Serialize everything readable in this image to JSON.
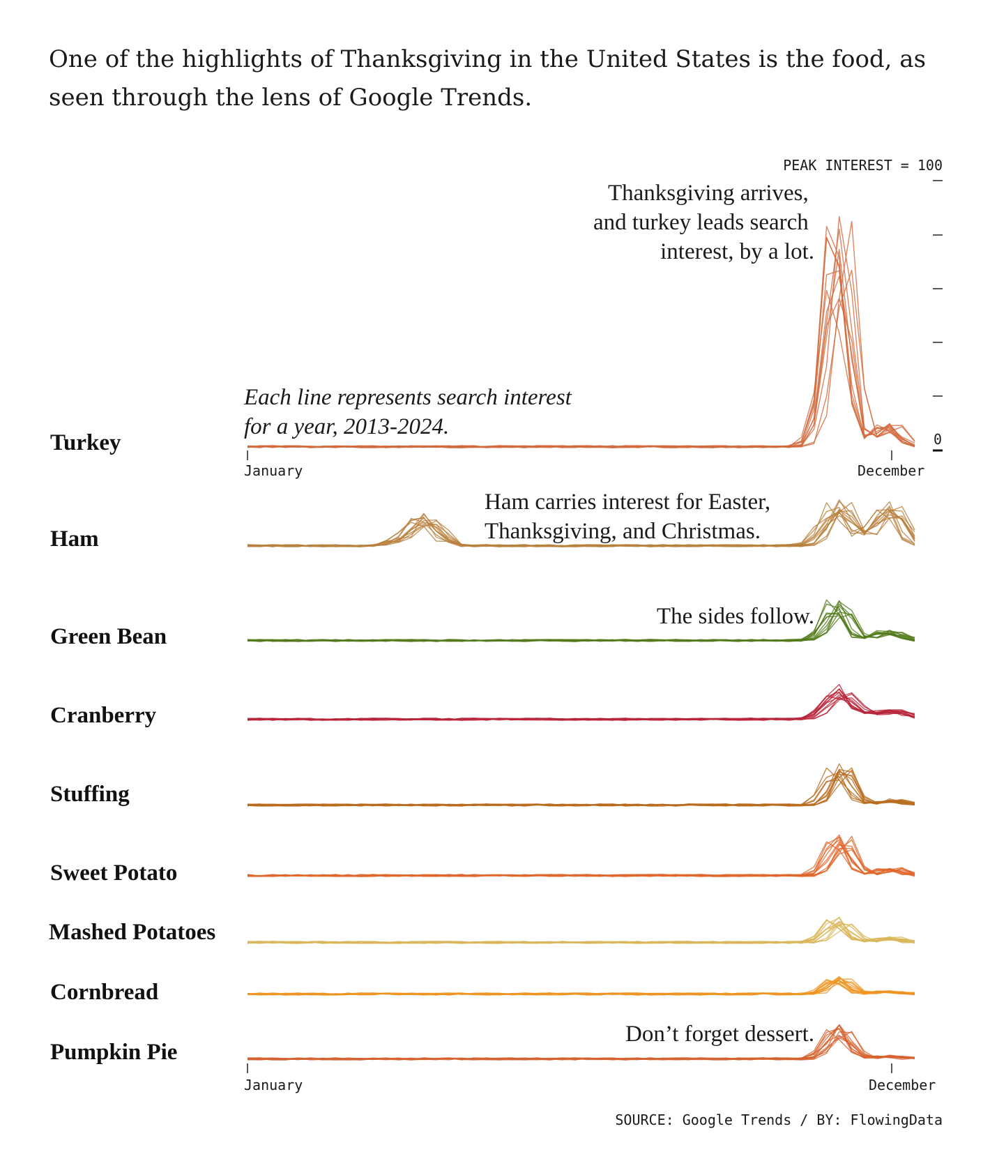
{
  "intro": "One of the highlights of Thanksgiving in the United States is the food, as seen through the lens of Google Trends.",
  "source": "SOURCE: Google Trends / BY: FlowingData",
  "scale": {
    "label": "PEAK INTEREST = 100",
    "zero_label": "0"
  },
  "axis": {
    "start_label": "January",
    "end_label": "December"
  },
  "annotations": {
    "italic_note": [
      "Each line represents search interest",
      "for a year, 2013-2024."
    ],
    "turkey_note": [
      "Thanksgiving arrives,",
      "and turkey leads search",
      "interest, by a lot."
    ],
    "ham_note": [
      "Ham carries interest for Easter,",
      "Thanksgiving, and Christmas."
    ],
    "sides_note": "The sides follow.",
    "dessert_note": "Don’t forget dessert."
  },
  "chart_data": {
    "type": "line",
    "description_units": "weekly search interest, 0-100 scale (peak interest = 100), one line per year 2013-2024",
    "x": {
      "range": [
        "January",
        "December"
      ],
      "weeks": 53
    },
    "years": [
      2013,
      2014,
      2015,
      2016,
      2017,
      2018,
      2019,
      2020,
      2021,
      2022,
      2023,
      2024
    ],
    "ylim": [
      0,
      100
    ],
    "series": [
      {
        "name": "Turkey",
        "color": "#d2693c",
        "baseline": 1,
        "events": [
          {
            "week": 47,
            "peak": 100,
            "width": 0.9
          },
          {
            "week": 51,
            "peak": 10,
            "width": 0.9
          }
        ]
      },
      {
        "name": "Ham",
        "color": "#b87f3c",
        "baseline": 1,
        "events": [
          {
            "week": 14,
            "peak": 12,
            "width": 1.0
          },
          {
            "week": 47,
            "peak": 18,
            "width": 1.0
          },
          {
            "week": 51,
            "peak": 18,
            "width": 1.0
          }
        ]
      },
      {
        "name": "Green Bean",
        "color": "#527a1a",
        "baseline": 0,
        "events": [
          {
            "week": 47,
            "peak": 17,
            "width": 0.8
          },
          {
            "week": 51,
            "peak": 4,
            "width": 1.0
          }
        ]
      },
      {
        "name": "Cranberry",
        "color": "#b8243a",
        "baseline": 0,
        "events": [
          {
            "week": 47,
            "peak": 14,
            "width": 1.0
          },
          {
            "week": 51,
            "peak": 4,
            "width": 1.4
          }
        ]
      },
      {
        "name": "Stuffing",
        "color": "#b86b1e",
        "baseline": 0,
        "events": [
          {
            "week": 47,
            "peak": 18,
            "width": 0.8
          },
          {
            "week": 51,
            "peak": 2,
            "width": 1.0
          }
        ]
      },
      {
        "name": "Sweet Potato",
        "color": "#e0662a",
        "baseline": 0,
        "events": [
          {
            "week": 47,
            "peak": 18,
            "width": 0.8
          },
          {
            "week": 51,
            "peak": 3,
            "width": 0.9
          }
        ]
      },
      {
        "name": "Mashed Potatoes",
        "color": "#d8b65a",
        "baseline": 0,
        "events": [
          {
            "week": 47,
            "peak": 10,
            "width": 0.8
          },
          {
            "week": 51,
            "peak": 2,
            "width": 0.9
          }
        ]
      },
      {
        "name": "Cornbread",
        "color": "#ee9420",
        "baseline": 0,
        "events": [
          {
            "week": 47,
            "peak": 7,
            "width": 0.8
          },
          {
            "week": 51,
            "peak": 1,
            "width": 1.0
          }
        ]
      },
      {
        "name": "Pumpkin Pie",
        "color": "#d6622e",
        "baseline": 0,
        "events": [
          {
            "week": 47,
            "peak": 13,
            "width": 0.9
          },
          {
            "week": 51,
            "peak": 1,
            "width": 1.0
          }
        ]
      }
    ]
  }
}
